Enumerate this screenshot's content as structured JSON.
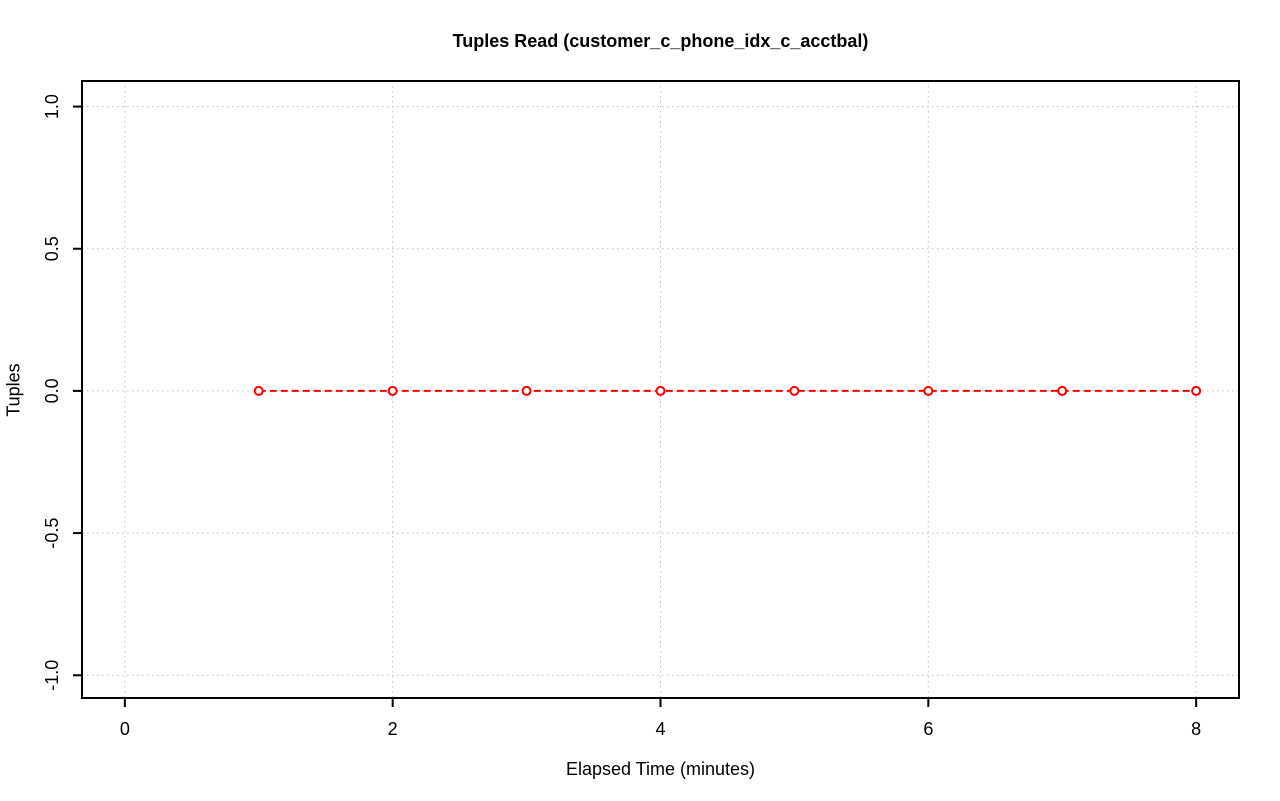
{
  "chart_data": {
    "type": "line",
    "title": "Tuples Read (customer_c_phone_idx_c_acctbal)",
    "xlabel": "Elapsed Time (minutes)",
    "ylabel": "Tuples",
    "series": [
      {
        "name": "Tuples Read",
        "x": [
          1,
          2,
          3,
          4,
          5,
          6,
          7,
          8
        ],
        "y": [
          0,
          0,
          0,
          0,
          0,
          0,
          0,
          0
        ],
        "color": "#ff0000",
        "line_style": "dashed",
        "marker": "open-circle"
      }
    ],
    "xticks": [
      0,
      2,
      4,
      6,
      8
    ],
    "xtick_labels": [
      "0",
      "2",
      "4",
      "6",
      "8"
    ],
    "yticks": [
      -1.0,
      -0.5,
      0.0,
      0.5,
      1.0
    ],
    "ytick_labels": [
      "-1.0",
      "-0.5",
      "0.0",
      "0.5",
      "1.0"
    ],
    "xlim": [
      -0.32,
      8.32
    ],
    "ylim": [
      -1.08,
      1.09
    ],
    "grid": "dotted",
    "legend_position": "none",
    "colors": {
      "grid": "#c0c0c0",
      "axis": "#000000",
      "background": "#ffffff",
      "series": "#ff0000"
    }
  }
}
